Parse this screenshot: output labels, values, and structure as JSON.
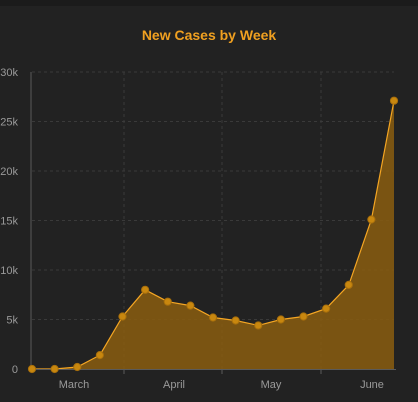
{
  "chart_data": {
    "type": "area",
    "title": "New Cases by Week",
    "x_tick_labels": [
      "March",
      "April",
      "May",
      "June"
    ],
    "y_tick_labels": [
      "0",
      "5k",
      "10k",
      "15k",
      "20k",
      "25k",
      "30k"
    ],
    "ylim": [
      0,
      30000
    ],
    "grid": true,
    "series": [
      {
        "values": [
          0,
          0,
          200,
          1400,
          5300,
          8000,
          6800,
          6400,
          5200,
          4900,
          4400,
          5000,
          5300,
          6100,
          8500,
          15100,
          27100
        ]
      }
    ],
    "colors": {
      "background": "#222222",
      "line": "#f5a623",
      "fill": "#8a5d0f",
      "marker": "#c8870f",
      "grid": "#3a3a3a",
      "axis": "#5a5a5a",
      "title": "#f0a020"
    }
  }
}
